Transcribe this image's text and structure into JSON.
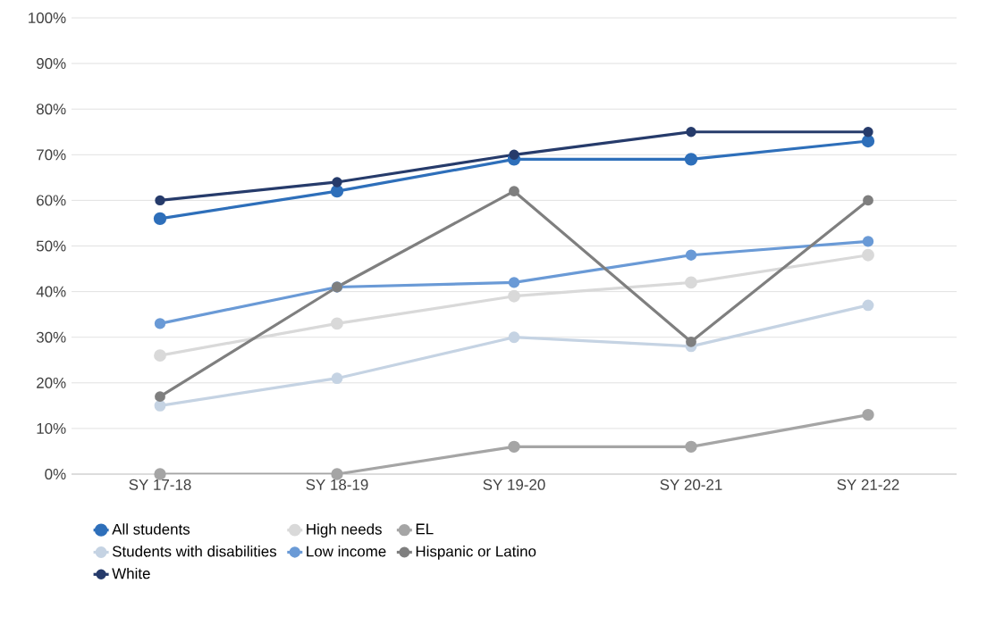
{
  "chart_data": {
    "type": "line",
    "categories": [
      "SY 17-18",
      "SY 18-19",
      "SY 19-20",
      "SY 20-21",
      "SY 21-22"
    ],
    "series": [
      {
        "name": "All students",
        "color": "#2e6fba",
        "values": [
          56,
          62,
          69,
          69,
          73
        ]
      },
      {
        "name": "High needs",
        "color": "#d9d9d9",
        "values": [
          26,
          33,
          39,
          42,
          48
        ]
      },
      {
        "name": "EL",
        "color": "#a5a5a5",
        "values": [
          0,
          0,
          6,
          6,
          13
        ]
      },
      {
        "name": "Students with disabilities",
        "color": "#c5d3e3",
        "values": [
          15,
          21,
          30,
          28,
          37
        ]
      },
      {
        "name": "Low income",
        "color": "#6a9ad6",
        "values": [
          33,
          41,
          42,
          48,
          51
        ]
      },
      {
        "name": "Hispanic or Latino",
        "color": "#7f7f7f",
        "values": [
          17,
          41,
          62,
          29,
          60
        ]
      },
      {
        "name": "White",
        "color": "#263b6b",
        "values": [
          60,
          64,
          70,
          75,
          75
        ]
      }
    ],
    "ylim": [
      0,
      100
    ],
    "yticks": [
      {
        "value": 0,
        "label": "0%"
      },
      {
        "value": 10,
        "label": "10%"
      },
      {
        "value": 20,
        "label": "20%"
      },
      {
        "value": 30,
        "label": "30%"
      },
      {
        "value": 40,
        "label": "40%"
      },
      {
        "value": 50,
        "label": "50%"
      },
      {
        "value": 60,
        "label": "60%"
      },
      {
        "value": 70,
        "label": "70%"
      },
      {
        "value": 80,
        "label": "80%"
      },
      {
        "value": 90,
        "label": "90%"
      },
      {
        "value": 100,
        "label": "100%"
      }
    ],
    "grid": "y",
    "legend": "bottom",
    "marker": "circle",
    "line_style": "solid"
  }
}
